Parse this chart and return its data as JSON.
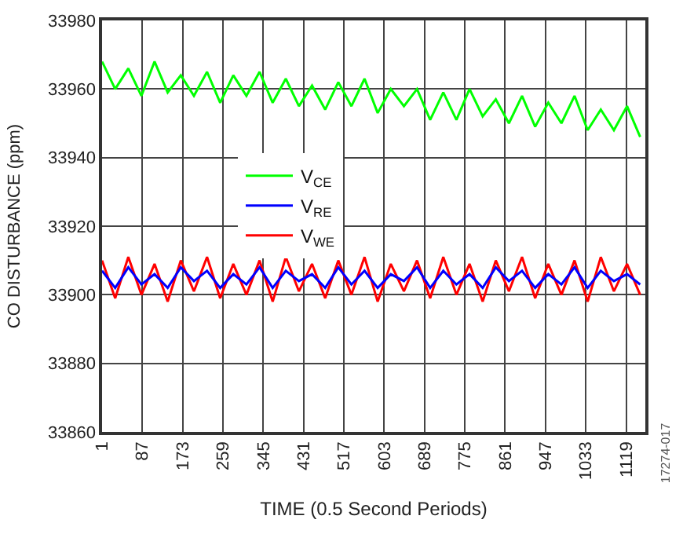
{
  "chart_data": {
    "type": "line",
    "xlabel": "TIME (0.5 Second Periods)",
    "ylabel": "CO DISTURBANCE (ppm)",
    "x": [
      1,
      29,
      57,
      85,
      113,
      141,
      169,
      197,
      225,
      253,
      281,
      309,
      337,
      365,
      393,
      421,
      449,
      477,
      505,
      533,
      561,
      589,
      617,
      645,
      673,
      701,
      729,
      757,
      785,
      813,
      841,
      869,
      897,
      925,
      953,
      981,
      1009,
      1037,
      1065,
      1093,
      1121,
      1149
    ],
    "series": [
      {
        "name": "V$_{CE}$",
        "color": "#00ff00",
        "values": [
          33968,
          33960,
          33966,
          33958,
          33968,
          33959,
          33964,
          33958,
          33965,
          33956,
          33964,
          33958,
          33965,
          33956,
          33963,
          33955,
          33961,
          33954,
          33962,
          33955,
          33963,
          33953,
          33960,
          33955,
          33960,
          33951,
          33959,
          33951,
          33960,
          33952,
          33957,
          33950,
          33958,
          33949,
          33956,
          33950,
          33958,
          33948,
          33954,
          33948,
          33955,
          33946
        ]
      },
      {
        "name": "V$_{RE}$",
        "color": "#0000ff",
        "values": [
          33907,
          33902,
          33908,
          33903,
          33906,
          33902,
          33908,
          33904,
          33907,
          33902,
          33906,
          33903,
          33908,
          33902,
          33907,
          33904,
          33906,
          33902,
          33908,
          33903,
          33907,
          33902,
          33906,
          33904,
          33908,
          33902,
          33907,
          33903,
          33906,
          33902,
          33908,
          33904,
          33907,
          33902,
          33906,
          33903,
          33908,
          33902,
          33907,
          33904,
          33906,
          33903
        ]
      },
      {
        "name": "V$_{WE}$",
        "color": "#ff0000",
        "values": [
          33910,
          33899,
          33911,
          33900,
          33909,
          33898,
          33910,
          33901,
          33911,
          33899,
          33909,
          33900,
          33910,
          33898,
          33911,
          33901,
          33909,
          33899,
          33910,
          33900,
          33911,
          33898,
          33909,
          33901,
          33910,
          33899,
          33911,
          33900,
          33909,
          33898,
          33910,
          33901,
          33911,
          33899,
          33909,
          33900,
          33910,
          33898,
          33911,
          33901,
          33909,
          33900
        ]
      }
    ],
    "xlim": [
      1,
      1160
    ],
    "xticks": [
      1,
      87,
      173,
      259,
      345,
      431,
      517,
      603,
      689,
      775,
      861,
      947,
      1033,
      1119
    ],
    "ylim": [
      33860,
      33980
    ],
    "yticks": [
      33860,
      33880,
      33900,
      33920,
      33940,
      33960,
      33980
    ],
    "grid": true,
    "legend": "center left",
    "line_style": "solid",
    "marker": "none",
    "annotations": [
      "17274-017"
    ]
  }
}
